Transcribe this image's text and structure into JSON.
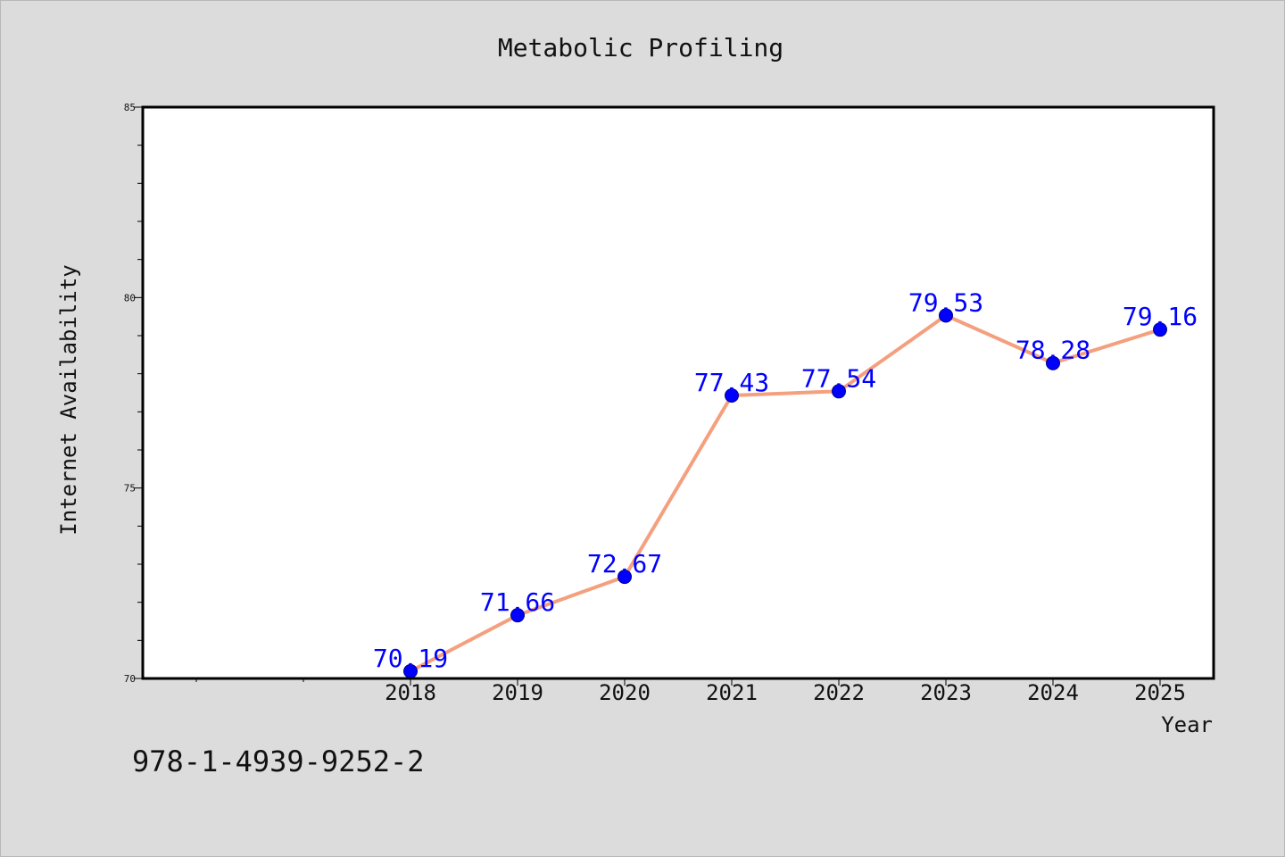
{
  "footer_text": "978-1-4939-9252-2",
  "colors": {
    "background": "#dcdcdc",
    "plot_background": "#ffffff",
    "line": "#f4a07e",
    "marker": "#0000ff",
    "label": "#0000ff"
  },
  "chart_data": {
    "type": "line",
    "title": "Metabolic Profiling",
    "xlabel": "Year",
    "ylabel": "Internet Availability",
    "categories": [
      "2018",
      "2019",
      "2020",
      "2021",
      "2022",
      "2023",
      "2024",
      "2025"
    ],
    "series": [
      {
        "values": [
          70.19,
          71.66,
          72.67,
          77.43,
          77.54,
          79.53,
          78.28,
          79.16
        ],
        "labels": [
          "70.19",
          "71.66",
          "72.67",
          "77.43",
          "77.54",
          "79.53",
          "78.28",
          "79.16"
        ]
      }
    ],
    "ylim": [
      70,
      85
    ],
    "yticks": [
      "70",
      "75",
      "80",
      "85"
    ],
    "grid": false,
    "legend": "none"
  }
}
